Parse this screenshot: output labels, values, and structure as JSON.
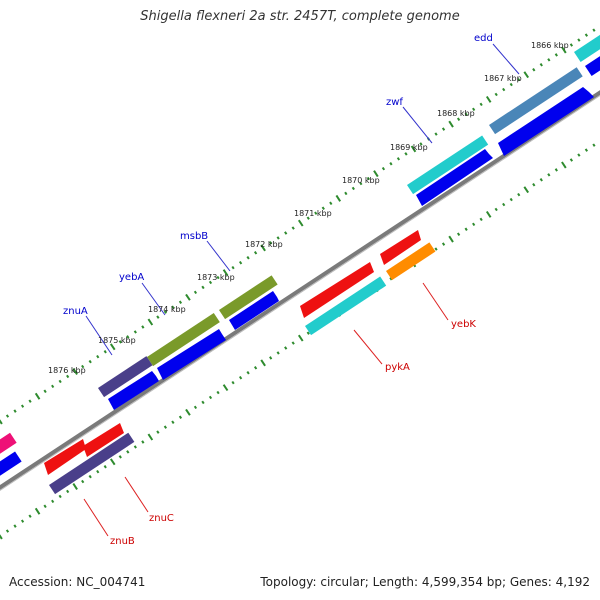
{
  "title": "Shigella flexneri 2a str. 2457T, complete genome",
  "footer": {
    "accession": "Accession: NC_004741",
    "summary": "Topology: circular; Length: 4,599,354 bp; Genes: 4,192"
  },
  "colors": {
    "backbone": "#7a7a7a",
    "tick_dots": "#2e8b2e",
    "cds": "#0000ee",
    "leader_line_blue": "#3333cc",
    "leader_line_red": "#dd2222"
  },
  "kbp_ticks": [
    "1866 kbp",
    "1867 kbp",
    "1868 kbp",
    "1869 kbp",
    "1870 kbp",
    "1871 kbp",
    "1872 kbp",
    "1873 kbp",
    "1874 kbp",
    "1875 kbp",
    "1876 kbp"
  ],
  "forward_genes": [
    {
      "name": "edd",
      "color": "#4a86b8"
    },
    {
      "name": "zwf",
      "color": "#22cccc"
    },
    {
      "name": "msbB",
      "color": "#7a9a2a"
    },
    {
      "name": "yebA",
      "color": "#7a9a2a"
    },
    {
      "name": "znuA",
      "color": "#4a3f8a"
    }
  ],
  "reverse_genes": [
    {
      "name": "yebK",
      "color": "#ff8c00"
    },
    {
      "name": "pykA",
      "color": "#22cccc"
    },
    {
      "name": "znuC",
      "color": "#ee1111"
    },
    {
      "name": "znuB",
      "color": "#4a3f8a"
    }
  ]
}
